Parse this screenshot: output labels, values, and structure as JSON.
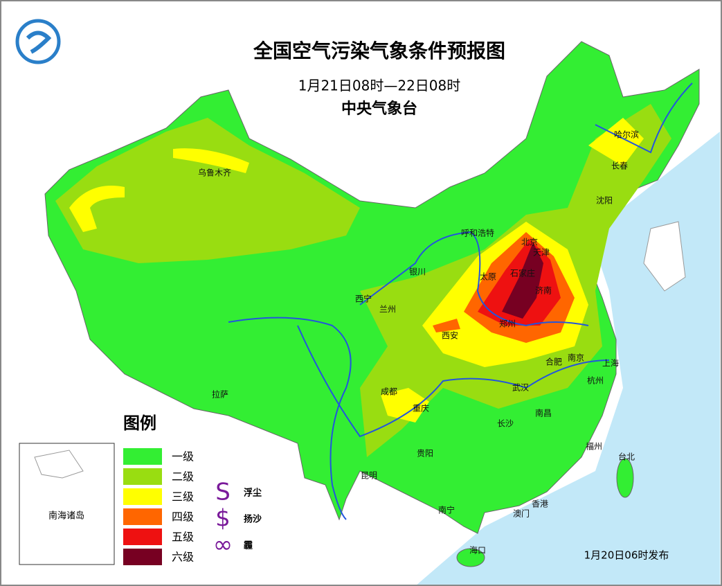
{
  "title": "全国空气污染气象条件预报图",
  "subtitle": "1月21日08时—22日08时",
  "issuer": "中央气象台",
  "legend": {
    "title": "图例",
    "levels": [
      {
        "name": "一级",
        "color": "#33ee33"
      },
      {
        "name": "二级",
        "color": "#99dd11"
      },
      {
        "name": "三级",
        "color": "#ffff00"
      },
      {
        "name": "四级",
        "color": "#ff6600"
      },
      {
        "name": "五级",
        "color": "#ee1111"
      },
      {
        "name": "六级",
        "color": "#770022"
      }
    ],
    "symbols": [
      {
        "symbol": "S",
        "label": "浮尘"
      },
      {
        "symbol": "$",
        "label": "扬沙"
      },
      {
        "symbol": "∞",
        "label": "霾"
      }
    ]
  },
  "cities": [
    "乌鲁木齐",
    "哈尔滨",
    "长春",
    "沈阳",
    "呼和浩特",
    "北京",
    "天津",
    "银川",
    "太原",
    "石家庄",
    "济南",
    "西宁",
    "兰州",
    "郑州",
    "西安",
    "合肥",
    "南京",
    "上海",
    "杭州",
    "武汉",
    "成都",
    "重庆",
    "拉萨",
    "长沙",
    "南昌",
    "贵阳",
    "福州",
    "台北",
    "昆明",
    "南宁",
    "澳门",
    "香港",
    "海口"
  ],
  "inset_label": "南海诸岛",
  "release": "1月20日06时发布"
}
